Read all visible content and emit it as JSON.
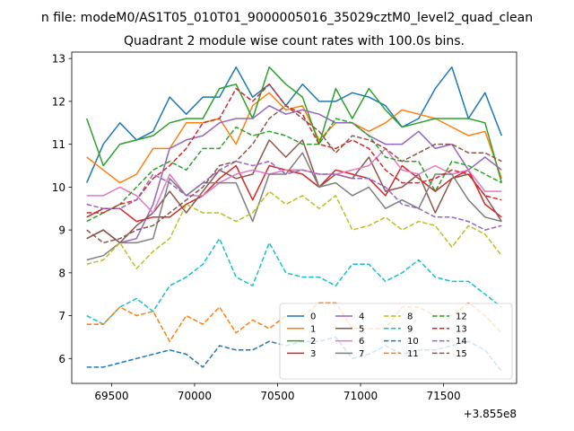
{
  "chart_data": {
    "type": "line",
    "suptitle": "n file: modeM0/AS1T05_010T01_9000005016_35029cztM0_level2_quad_clean",
    "title": "Quadrant 2 module wise count rates with 100.0s bins.",
    "xlabel": "",
    "ylabel": "",
    "x_offset_label": "+3.855e8",
    "xlim": [
      69260,
      71940
    ],
    "ylim": [
      5.42,
      13.15
    ],
    "xticks": [
      69500,
      70000,
      70500,
      71000,
      71500
    ],
    "xtick_labels": [
      "69500",
      "70000",
      "70500",
      "71000",
      "71500"
    ],
    "yticks": [
      6,
      7,
      8,
      9,
      10,
      11,
      12,
      13
    ],
    "ytick_labels": [
      "6",
      "7",
      "8",
      "9",
      "10",
      "11",
      "12",
      "13"
    ],
    "grid": false,
    "legend_position": "lower-right",
    "legend_columns": 4,
    "x": [
      69350,
      69450,
      69550,
      69650,
      69750,
      69850,
      69950,
      70050,
      70150,
      70250,
      70350,
      70450,
      70550,
      70650,
      70750,
      70850,
      70950,
      71050,
      71150,
      71250,
      71350,
      71450,
      71550,
      71650,
      71750,
      71850
    ],
    "series": [
      {
        "name": "0",
        "color": "#1f77b4",
        "style": "solid",
        "values": [
          10.1,
          11.0,
          11.5,
          11.1,
          11.3,
          12.1,
          11.7,
          12.1,
          12.1,
          12.8,
          12.1,
          12.4,
          11.9,
          12.4,
          12.0,
          12.0,
          12.2,
          12.1,
          11.9,
          11.4,
          11.6,
          12.3,
          12.8,
          11.6,
          12.2,
          11.2
        ]
      },
      {
        "name": "1",
        "color": "#ff7f0e",
        "style": "solid",
        "values": [
          10.7,
          10.4,
          10.1,
          10.3,
          10.9,
          10.9,
          11.5,
          11.5,
          11.6,
          11.0,
          11.9,
          12.2,
          11.8,
          11.9,
          11.1,
          11.5,
          11.5,
          11.3,
          11.5,
          11.8,
          11.7,
          11.6,
          11.4,
          11.2,
          11.3,
          10.2
        ]
      },
      {
        "name": "2",
        "color": "#2ca02c",
        "style": "solid",
        "values": [
          11.6,
          10.5,
          11.0,
          11.1,
          11.2,
          11.5,
          11.6,
          11.6,
          12.3,
          12.4,
          11.6,
          12.8,
          12.4,
          12.1,
          11.0,
          12.3,
          11.6,
          12.3,
          11.8,
          11.4,
          11.5,
          11.6,
          11.6,
          11.6,
          11.5,
          10.1
        ]
      },
      {
        "name": "3",
        "color": "#d62728",
        "style": "solid",
        "values": [
          9.3,
          9.5,
          9.5,
          9.2,
          9.3,
          9.3,
          9.6,
          9.8,
          10.2,
          10.5,
          9.7,
          10.5,
          10.4,
          10.3,
          10.0,
          10.4,
          10.3,
          10.2,
          9.8,
          10.5,
          10.2,
          9.9,
          10.2,
          10.4,
          9.6,
          9.3
        ]
      },
      {
        "name": "4",
        "color": "#9467bd",
        "style": "solid",
        "values": [
          8.8,
          9.0,
          8.7,
          8.8,
          9.6,
          10.9,
          11.1,
          11.2,
          11.5,
          11.6,
          11.6,
          11.9,
          11.7,
          11.8,
          11.7,
          11.5,
          11.5,
          11.2,
          11.0,
          11.0,
          11.3,
          10.9,
          11.0,
          10.4,
          10.7,
          10.4
        ]
      },
      {
        "name": "5",
        "color": "#8c564b",
        "style": "solid",
        "values": [
          8.8,
          9.0,
          8.7,
          9.1,
          9.4,
          9.9,
          9.4,
          9.9,
          10.4,
          10.2,
          10.3,
          11.1,
          10.7,
          11.1,
          10.0,
          10.3,
          10.2,
          10.7,
          9.9,
          10.0,
          10.3,
          9.4,
          10.2,
          10.3,
          9.8,
          9.2
        ]
      },
      {
        "name": "6",
        "color": "#e377c2",
        "style": "solid",
        "values": [
          9.8,
          9.8,
          10.0,
          9.8,
          9.4,
          10.3,
          9.8,
          9.8,
          10.1,
          10.3,
          10.4,
          10.3,
          10.4,
          10.4,
          10.3,
          10.3,
          10.4,
          10.5,
          10.9,
          10.4,
          10.3,
          10.5,
          10.3,
          10.4,
          9.9,
          9.9
        ]
      },
      {
        "name": "7",
        "color": "#7f7f7f",
        "style": "solid",
        "values": [
          8.3,
          8.4,
          8.7,
          8.7,
          8.8,
          10.2,
          9.8,
          10.1,
          10.1,
          10.1,
          9.2,
          10.3,
          10.3,
          10.8,
          10.0,
          10.1,
          9.8,
          10.0,
          9.5,
          9.7,
          9.5,
          10.3,
          10.3,
          9.7,
          9.3,
          9.2
        ]
      },
      {
        "name": "8",
        "color": "#bcbd22",
        "style": "dashed",
        "values": [
          8.2,
          8.3,
          8.7,
          8.1,
          8.5,
          8.8,
          9.6,
          9.4,
          9.4,
          9.2,
          9.4,
          9.9,
          9.6,
          9.8,
          9.5,
          9.8,
          9.0,
          9.1,
          9.3,
          9.0,
          9.2,
          9.1,
          8.6,
          9.1,
          8.9,
          8.4
        ]
      },
      {
        "name": "9",
        "color": "#17becf",
        "style": "dashed",
        "values": [
          7.0,
          6.8,
          7.2,
          7.4,
          7.1,
          7.7,
          7.9,
          8.2,
          8.8,
          7.9,
          7.7,
          8.7,
          8.0,
          7.9,
          7.9,
          7.7,
          8.2,
          8.2,
          7.8,
          8.0,
          8.3,
          7.9,
          7.8,
          7.8,
          7.5,
          7.2
        ]
      },
      {
        "name": "10",
        "color": "#1f77b4",
        "style": "dashed",
        "values": [
          5.8,
          5.8,
          5.9,
          6.0,
          6.1,
          6.2,
          6.1,
          5.8,
          6.3,
          6.2,
          6.2,
          6.4,
          6.3,
          6.4,
          6.4,
          6.5,
          6.0,
          6.1,
          6.3,
          6.1,
          6.2,
          6.2,
          6.3,
          6.4,
          6.2,
          5.7
        ]
      },
      {
        "name": "11",
        "color": "#ff7f0e",
        "style": "dashed",
        "values": [
          6.8,
          6.8,
          7.2,
          7.0,
          7.1,
          6.4,
          7.0,
          6.8,
          7.2,
          6.6,
          6.9,
          6.7,
          7.0,
          7.0,
          7.3,
          7.3,
          6.7,
          6.7,
          6.7,
          7.2,
          7.2,
          7.0,
          7.0,
          7.3,
          7.0,
          6.6
        ]
      },
      {
        "name": "12",
        "color": "#2ca02c",
        "style": "dashed",
        "values": [
          9.2,
          9.4,
          9.6,
          10.0,
          10.4,
          10.6,
          10.4,
          10.9,
          10.9,
          11.4,
          11.2,
          11.3,
          11.2,
          11.0,
          11.0,
          11.6,
          11.5,
          11.2,
          10.7,
          10.6,
          10.6,
          9.9,
          10.6,
          10.5,
          10.3,
          10.1
        ]
      },
      {
        "name": "13",
        "color": "#d62728",
        "style": "dashed",
        "values": [
          9.4,
          9.4,
          9.6,
          9.7,
          10.2,
          10.5,
          10.9,
          11.5,
          11.6,
          12.3,
          12.0,
          12.4,
          11.9,
          11.7,
          11.0,
          10.9,
          11.1,
          10.9,
          10.4,
          10.1,
          10.1,
          10.2,
          10.4,
          10.3,
          9.8,
          9.7
        ]
      },
      {
        "name": "14",
        "color": "#9467bd",
        "style": "dashed",
        "values": [
          9.6,
          9.5,
          9.5,
          9.7,
          10.3,
          10.1,
          9.8,
          10.1,
          10.4,
          10.6,
          10.5,
          10.6,
          10.3,
          10.4,
          10.3,
          10.3,
          10.2,
          10.2,
          10.0,
          9.6,
          9.5,
          9.3,
          9.3,
          9.2,
          9.0,
          9.1
        ]
      },
      {
        "name": "15",
        "color": "#8c564b",
        "style": "dashed",
        "values": [
          9.0,
          8.7,
          8.8,
          9.0,
          9.1,
          9.4,
          9.7,
          10.0,
          10.5,
          10.6,
          11.0,
          11.6,
          11.9,
          11.6,
          11.3,
          10.8,
          11.2,
          11.1,
          10.9,
          10.6,
          10.8,
          11.0,
          11.0,
          10.8,
          10.8,
          10.6
        ]
      }
    ]
  }
}
